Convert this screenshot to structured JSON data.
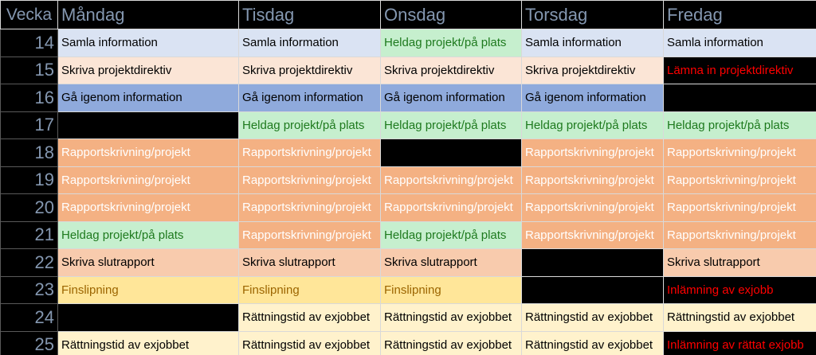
{
  "header": {
    "week": "Vecka",
    "days": [
      "Måndag",
      "Tisdag",
      "Onsdag",
      "Torsdag",
      "Fredag"
    ]
  },
  "style_colors": {
    "info": "#dae3f3",
    "directive": "#fbe5d6",
    "review": "#8faadc",
    "onsite": "#c6efce",
    "report": "#f4b183",
    "final": "#f8cbad",
    "polish": "#ffe699",
    "grading": "#fff2cc",
    "empty": "#000000",
    "deadline_text": "#ff0000",
    "week_text": "#8497b0"
  },
  "rows": [
    {
      "week": "14",
      "cells": [
        {
          "text": "Samla information",
          "style": "info"
        },
        {
          "text": "Samla information",
          "style": "info"
        },
        {
          "text": "Heldag projekt/på plats",
          "style": "onsite"
        },
        {
          "text": "Samla information",
          "style": "info"
        },
        {
          "text": "Samla information",
          "style": "info"
        }
      ]
    },
    {
      "week": "15",
      "cells": [
        {
          "text": "Skriva projektdirektiv",
          "style": "directive"
        },
        {
          "text": "Skriva projektdirektiv",
          "style": "directive"
        },
        {
          "text": "Skriva projektdirektiv",
          "style": "directive"
        },
        {
          "text": "Skriva projektdirektiv",
          "style": "directive"
        },
        {
          "text": "Lämna in projektdirektiv",
          "style": "deadline"
        }
      ]
    },
    {
      "week": "16",
      "cells": [
        {
          "text": "Gå igenom information",
          "style": "review"
        },
        {
          "text": "Gå igenom information",
          "style": "review"
        },
        {
          "text": "Gå igenom information",
          "style": "review"
        },
        {
          "text": "Gå igenom information",
          "style": "review"
        },
        {
          "text": "",
          "style": "empty"
        }
      ]
    },
    {
      "week": "17",
      "cells": [
        {
          "text": "",
          "style": "empty"
        },
        {
          "text": "Heldag projekt/på plats",
          "style": "onsite"
        },
        {
          "text": "Heldag projekt/på plats",
          "style": "onsite"
        },
        {
          "text": "Heldag projekt/på plats",
          "style": "onsite"
        },
        {
          "text": "Heldag projekt/på plats",
          "style": "onsite"
        }
      ]
    },
    {
      "week": "18",
      "cells": [
        {
          "text": "Rapportskrivning/projekt",
          "style": "report"
        },
        {
          "text": "Rapportskrivning/projekt",
          "style": "report"
        },
        {
          "text": "",
          "style": "empty"
        },
        {
          "text": "Rapportskrivning/projekt",
          "style": "report"
        },
        {
          "text": "Rapportskrivning/projekt",
          "style": "report"
        }
      ]
    },
    {
      "week": "19",
      "cells": [
        {
          "text": "Rapportskrivning/projekt",
          "style": "report"
        },
        {
          "text": "Rapportskrivning/projekt",
          "style": "report"
        },
        {
          "text": "Rapportskrivning/projekt",
          "style": "report"
        },
        {
          "text": "Rapportskrivning/projekt",
          "style": "report"
        },
        {
          "text": "Rapportskrivning/projekt",
          "style": "report"
        }
      ]
    },
    {
      "week": "20",
      "cells": [
        {
          "text": "Rapportskrivning/projekt",
          "style": "report"
        },
        {
          "text": "Rapportskrivning/projekt",
          "style": "report"
        },
        {
          "text": "Rapportskrivning/projekt",
          "style": "report"
        },
        {
          "text": "Rapportskrivning/projekt",
          "style": "report"
        },
        {
          "text": "Rapportskrivning/projekt",
          "style": "report"
        }
      ]
    },
    {
      "week": "21",
      "cells": [
        {
          "text": "Heldag projekt/på plats",
          "style": "onsite"
        },
        {
          "text": "Rapportskrivning/projekt",
          "style": "report"
        },
        {
          "text": "Heldag projekt/på plats",
          "style": "onsite"
        },
        {
          "text": "Rapportskrivning/projekt",
          "style": "report"
        },
        {
          "text": "Rapportskrivning/projekt",
          "style": "report"
        }
      ]
    },
    {
      "week": "22",
      "cells": [
        {
          "text": "Skriva slutrapport",
          "style": "final"
        },
        {
          "text": "Skriva slutrapport",
          "style": "final"
        },
        {
          "text": "Skriva slutrapport",
          "style": "final"
        },
        {
          "text": "",
          "style": "empty"
        },
        {
          "text": "Skriva slutrapport",
          "style": "final"
        }
      ]
    },
    {
      "week": "23",
      "cells": [
        {
          "text": "Finslipning",
          "style": "polish"
        },
        {
          "text": "Finslipning",
          "style": "polish"
        },
        {
          "text": "Finslipning",
          "style": "polish"
        },
        {
          "text": "",
          "style": "empty"
        },
        {
          "text": "Inlämning av exjobb",
          "style": "deadline"
        }
      ]
    },
    {
      "week": "24",
      "cells": [
        {
          "text": "",
          "style": "empty"
        },
        {
          "text": "Rättningstid av exjobbet",
          "style": "grading"
        },
        {
          "text": "Rättningstid av exjobbet",
          "style": "grading"
        },
        {
          "text": "Rättningstid av exjobbet",
          "style": "grading"
        },
        {
          "text": "Rättningstid av exjobbet",
          "style": "grading"
        }
      ]
    },
    {
      "week": "25",
      "cells": [
        {
          "text": "Rättningstid av exjobbet",
          "style": "grading"
        },
        {
          "text": "Rättningstid av exjobbet",
          "style": "grading"
        },
        {
          "text": "Rättningstid av exjobbet",
          "style": "grading"
        },
        {
          "text": "Rättningstid av exjobbet",
          "style": "grading"
        },
        {
          "text": "Inlämning av rättat exjobb",
          "style": "deadline"
        }
      ]
    }
  ]
}
